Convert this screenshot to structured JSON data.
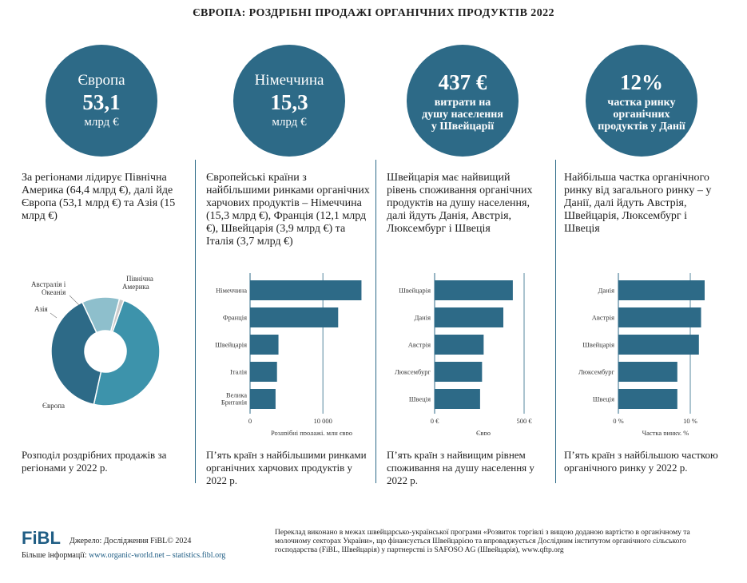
{
  "title": "ЄВРОПА: РОЗДРІБНІ ПРОДАЖІ ОРГАНІЧНИХ ПРОДУКТІВ 2022",
  "circles": [
    {
      "top": "Європа",
      "big": "53,1",
      "unit": "млрд €"
    },
    {
      "top": "Німеччина",
      "big": "15,3",
      "unit": "млрд €"
    },
    {
      "big": "437 €",
      "desc": "витрати на душу населення у Швейцарії"
    },
    {
      "big": "12%",
      "desc": "частка ринку органічних продуктів у Данії"
    }
  ],
  "texts": [
    "За регіонами лідирує Північна Америка (64,4 млрд €), далі йде Європа (53,1 млрд €) та Азія (15 млрд €)",
    "Європейські країни з найбільшими ринками органічних харчових продуктів – Німеччина (15,3 млрд €), Франція (12,1 млрд €), Швейцарія (3,9 млрд €) та Італія (3,7 млрд €)",
    "Швейцарія має найвищий рівень споживання органічних продуктів на душу населення, далі йдуть Данія, Австрія, Люксембург і Швеція",
    "Найбільша частка органічного ринку від загального ринку – у Данії, далі йдуть Австрія, Швейцарія, Люксембург і Швеція"
  ],
  "captions": [
    "Розподіл роздрібних продажів за регіонами у 2022 р.",
    "П’ять країн з найбільшими ринками органічних харчових продуктів у 2022 р.",
    "П’ять країн з найвищим рівнем споживання на душу населення у 2022 р.",
    "П’ять країн з найбільшою часткою органічного ринку у 2022 р."
  ],
  "chart_data": [
    {
      "type": "pie",
      "title": "Розподіл роздрібних продажів за регіонами",
      "categories": [
        "Північна Америка",
        "Європа",
        "Азія",
        "Австралія і Океанія"
      ],
      "values": [
        64.4,
        53.1,
        15,
        1.8
      ],
      "colors": [
        "#3d93ab",
        "#2d6a87",
        "#8ebfcc",
        "#c9c9c9"
      ],
      "labels": [
        "Північна Америка",
        "Європа",
        "Азія",
        "Австралія і Океанія"
      ]
    },
    {
      "type": "bar",
      "orientation": "horizontal",
      "categories": [
        "Німеччина",
        "Франція",
        "Швейцарія",
        "Італія",
        "Велика Британія"
      ],
      "values": [
        15300,
        12100,
        3900,
        3700,
        3500
      ],
      "xlim": [
        0,
        15800
      ],
      "ticks": [
        0,
        10000
      ],
      "tick_labels": [
        "0",
        "10 000"
      ],
      "xlabel": "Роздрібні продажі, млн євро",
      "color": "#2d6a87"
    },
    {
      "type": "bar",
      "orientation": "horizontal",
      "categories": [
        "Швейцарія",
        "Данія",
        "Австрія",
        "Люксембург",
        "Швеція"
      ],
      "values": [
        437,
        384,
        274,
        265,
        254
      ],
      "xlim": [
        0,
        500
      ],
      "ticks": [
        0,
        500
      ],
      "tick_labels": [
        "0 €",
        "500 €"
      ],
      "xlabel": "Євро",
      "color": "#2d6a87"
    },
    {
      "type": "bar",
      "orientation": "horizontal",
      "categories": [
        "Данія",
        "Австрія",
        "Швейцарія",
        "Люксембург",
        "Швеція"
      ],
      "values": [
        12,
        11.5,
        11.2,
        8.2,
        8.2
      ],
      "xlim": [
        0,
        12
      ],
      "ticks": [
        0,
        10
      ],
      "tick_labels": [
        "0 %",
        "10 %"
      ],
      "xlabel": "Частка ринку, %",
      "color": "#2d6a87"
    }
  ],
  "footer": {
    "logo": "FiBL",
    "source": "Джерело: Дослідження FiBL© 2024",
    "more_label": "Більше інформації:",
    "more_links": "www.organic-world.net – statistics.fibl.org",
    "note": "Переклад виконано в межах швейцарсько-української програми «Розвиток торгівлі з вищою доданою вартістю в органічному та молочному секторах України», що фінансується Швейцарією та впроваджується Дослідним інститутом органічного сільського господарства (FiBL, Швейцарія) у партнерстві із SAFOSO AG (Швейцарія), www.qftp.org"
  }
}
